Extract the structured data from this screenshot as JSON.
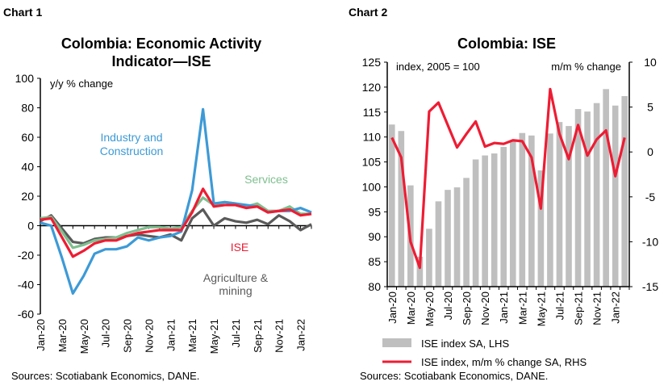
{
  "chart_data": [
    {
      "type": "line",
      "label": "Chart 1",
      "title": "Colombia: Economic Activity",
      "title2": "Indicator—ISE",
      "ylabel": "y/y % change",
      "ylim": [
        -60,
        100
      ],
      "yticks": [
        100,
        80,
        60,
        40,
        20,
        0,
        -20,
        -40,
        -60
      ],
      "x": [
        "Jan-20",
        "Feb-20",
        "Mar-20",
        "Apr-20",
        "May-20",
        "Jun-20",
        "Jul-20",
        "Aug-20",
        "Sep-20",
        "Oct-20",
        "Nov-20",
        "Dec-20",
        "Jan-21",
        "Feb-21",
        "Mar-21",
        "Apr-21",
        "May-21",
        "Jun-21",
        "Jul-21",
        "Aug-21",
        "Sep-21",
        "Oct-21",
        "Nov-21",
        "Dec-21",
        "Jan-22",
        "Feb-22"
      ],
      "xticklabels": [
        "Jan-20",
        "Mar-20",
        "May-20",
        "Jul-20",
        "Sep-20",
        "Nov-20",
        "Jan-21",
        "Mar-21",
        "May-21",
        "Jul-21",
        "Sep-21",
        "Nov-21",
        "Jan-22"
      ],
      "series": [
        {
          "name": "Agriculture & mining",
          "label1": "Agriculture &",
          "label2": "mining",
          "color": "#5a5a5a",
          "values": [
            3,
            7,
            -2,
            -11,
            -12,
            -9,
            -8,
            -8,
            -7,
            -6,
            -7,
            -8,
            -6,
            -10,
            5,
            11,
            0,
            5,
            3,
            2,
            4,
            1,
            7,
            3,
            -3,
            1
          ]
        },
        {
          "name": "Services",
          "label1": "Services",
          "color": "#7fbf8f",
          "values": [
            5,
            6,
            -4,
            -15,
            -13,
            -10,
            -9,
            -8,
            -5,
            -3,
            -1,
            -1,
            -2,
            -1,
            10,
            19,
            14,
            16,
            15,
            13,
            15,
            10,
            10,
            13,
            8,
            8
          ]
        },
        {
          "name": "Industry and Construction",
          "label1": "Industry and",
          "label2": "Construction",
          "color": "#3d9ad6",
          "values": [
            2,
            0,
            -22,
            -46,
            -34,
            -19,
            -16,
            -16,
            -14,
            -8,
            -10,
            -8,
            -7,
            -4,
            24,
            79,
            15,
            16,
            15,
            14,
            13,
            9,
            10,
            10,
            12,
            9
          ]
        },
        {
          "name": "ISE",
          "label1": "ISE",
          "color": "#ee1c33",
          "values": [
            4,
            5,
            -8,
            -21,
            -17,
            -12,
            -10,
            -10,
            -7,
            -5,
            -4,
            -3,
            -3,
            -3,
            9,
            25,
            13,
            14,
            14,
            12,
            13,
            9,
            10,
            11,
            7,
            8
          ]
        }
      ],
      "source": "Sources: Scotiabank Economics, DANE."
    },
    {
      "type": "bar+line",
      "label": "Chart 2",
      "title": "Colombia: ISE",
      "ylabel_left": "index, 2005 = 100",
      "ylabel_right": "m/m % change",
      "ylim_left": [
        80,
        125
      ],
      "ylim_right": [
        -15,
        10
      ],
      "yticks_left": [
        125,
        120,
        115,
        110,
        105,
        100,
        95,
        90,
        85,
        80
      ],
      "yticks_right": [
        10,
        5,
        0,
        -5,
        -10,
        -15
      ],
      "x": [
        "Jan-20",
        "Feb-20",
        "Mar-20",
        "Apr-20",
        "May-20",
        "Jun-20",
        "Jul-20",
        "Aug-20",
        "Sep-20",
        "Oct-20",
        "Nov-20",
        "Dec-20",
        "Jan-21",
        "Feb-21",
        "Mar-21",
        "Apr-21",
        "May-21",
        "Jun-21",
        "Jul-21",
        "Aug-21",
        "Sep-21",
        "Oct-21",
        "Nov-21",
        "Dec-21",
        "Jan-22",
        "Feb-22"
      ],
      "xticklabels": [
        "Jan-20",
        "Mar-20",
        "May-20",
        "Jul-20",
        "Sep-20",
        "Nov-20",
        "Jan-21",
        "Mar-21",
        "May-21",
        "Jul-21",
        "Sep-21",
        "Nov-21",
        "Jan-22"
      ],
      "series": [
        {
          "name": "ISE index SA, LHS",
          "color": "#bfbfbf",
          "values": [
            112.5,
            111.2,
            100.3,
            86,
            91.6,
            97.1,
            99.4,
            99.9,
            101.8,
            105.5,
            106.3,
            106.7,
            108,
            109.3,
            110.8,
            110.3,
            103.3,
            110.7,
            113,
            112.2,
            115.6,
            115.1,
            116.8,
            119.6,
            116.3,
            118.2
          ]
        },
        {
          "name": "ISE index, m/m % change SA, RHS",
          "color": "#ee1c33",
          "values": [
            1.6,
            -0.6,
            -10,
            -12.9,
            4.5,
            5.5,
            3,
            0.5,
            2,
            3.4,
            0.6,
            1,
            0.9,
            1.3,
            1.2,
            -0.6,
            -6.3,
            7,
            2,
            -0.8,
            3,
            -0.4,
            1.4,
            2.4,
            -2.7,
            1.6
          ]
        }
      ],
      "source": "Sources: Scotiabank Economics, DANE."
    }
  ]
}
